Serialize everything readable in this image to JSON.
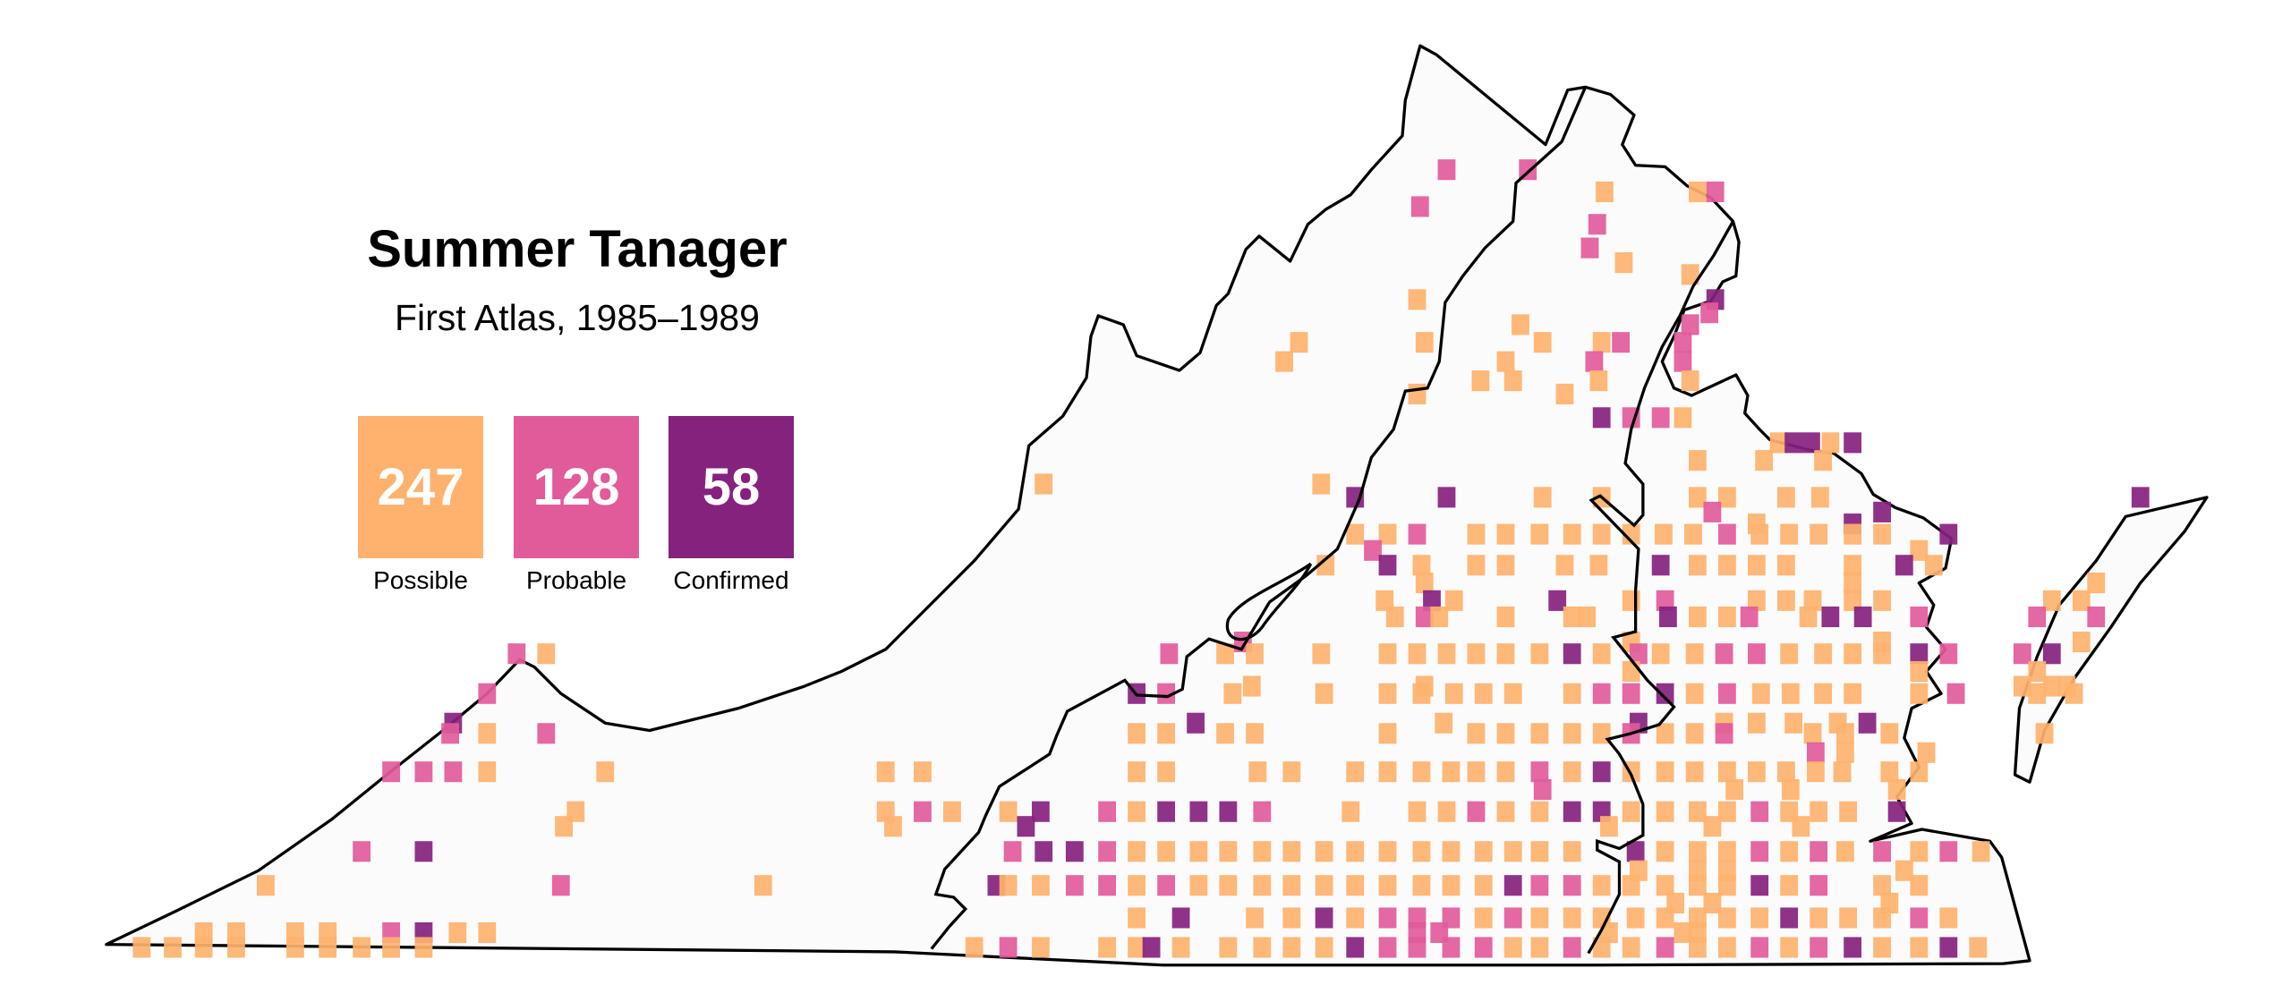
{
  "title": "Summer Tanager",
  "subtitle": "First Atlas, 1985–1989",
  "legend": [
    {
      "label": "Possible",
      "count": "247",
      "color": "#FEB26E"
    },
    {
      "label": "Probable",
      "count": "128",
      "color": "#E15B9B"
    },
    {
      "label": "Confirmed",
      "count": "58",
      "color": "#85227E"
    }
  ],
  "map": {
    "region": "Virginia",
    "fill": "#FBFBFB",
    "border_color": "#000000",
    "county_line_color": "#888888"
  }
}
